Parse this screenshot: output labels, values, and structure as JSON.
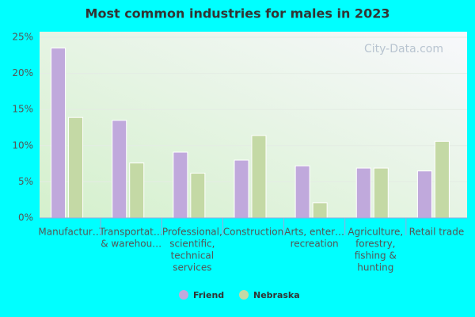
{
  "chart_data": {
    "type": "bar",
    "title": "Most common industries for males in 2023",
    "watermark": "City-Data.com",
    "categories": [
      [
        "Manufactur…"
      ],
      [
        "Transportat…",
        "& warehou…"
      ],
      [
        "Professional,",
        "scientific,",
        "technical",
        "services"
      ],
      [
        "Construction"
      ],
      [
        "Arts, enter…",
        "recreation"
      ],
      [
        "Agriculture,",
        "forestry,",
        "fishing &",
        "hunting"
      ],
      [
        "Retail trade"
      ]
    ],
    "series": [
      {
        "name": "Friend",
        "color": "#c0a9dc",
        "values": [
          23.5,
          13.5,
          9.1,
          8.0,
          7.2,
          6.9,
          6.5
        ]
      },
      {
        "name": "Nebraska",
        "color": "#c4d9a5",
        "values": [
          13.9,
          7.6,
          6.2,
          11.4,
          2.1,
          6.9,
          10.6
        ]
      }
    ],
    "ylim": [
      0,
      25
    ],
    "yticks": [
      {
        "value": 0,
        "label": "0%"
      },
      {
        "value": 5,
        "label": "5%"
      },
      {
        "value": 10,
        "label": "10%"
      },
      {
        "value": 15,
        "label": "15%"
      },
      {
        "value": 20,
        "label": "20%"
      },
      {
        "value": 25,
        "label": "25%"
      }
    ],
    "grid": true
  }
}
